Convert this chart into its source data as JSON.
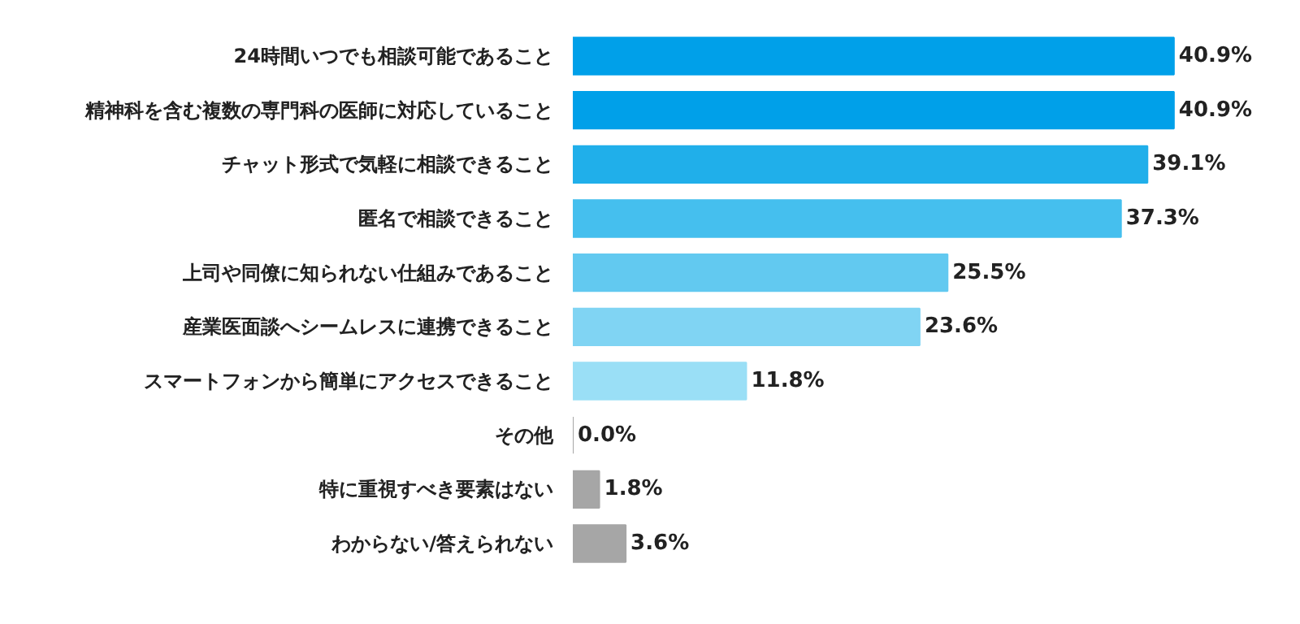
{
  "chart_data": {
    "type": "bar",
    "orientation": "horizontal",
    "categories": [
      "24時間いつでも相談可能であること",
      "精神科を含む複数の専門科の医師に対応していること",
      "チャット形式で気軽に相談できること",
      "匿名で相談できること",
      "上司や同僚に知られない仕組みであること",
      "産業医面談へシームレスに連携できること",
      "スマートフォンから簡単にアクセスできること",
      "その他",
      "特に重視すべき要素はない",
      "わからない/答えられない"
    ],
    "values": [
      40.9,
      40.9,
      39.1,
      37.3,
      25.5,
      23.6,
      11.8,
      0.0,
      1.8,
      3.6
    ],
    "value_labels": [
      "40.9%",
      "40.9%",
      "39.1%",
      "37.3%",
      "25.5%",
      "23.6%",
      "11.8%",
      "0.0%",
      "1.8%",
      "3.6%"
    ],
    "colors": [
      "#00a0e9",
      "#00a0e9",
      "#20afea",
      "#45bfee",
      "#62c9f0",
      "#80d4f3",
      "#9adff6",
      "#a6a6a6",
      "#a6a6a6",
      "#a6a6a6"
    ],
    "grid": false
  }
}
